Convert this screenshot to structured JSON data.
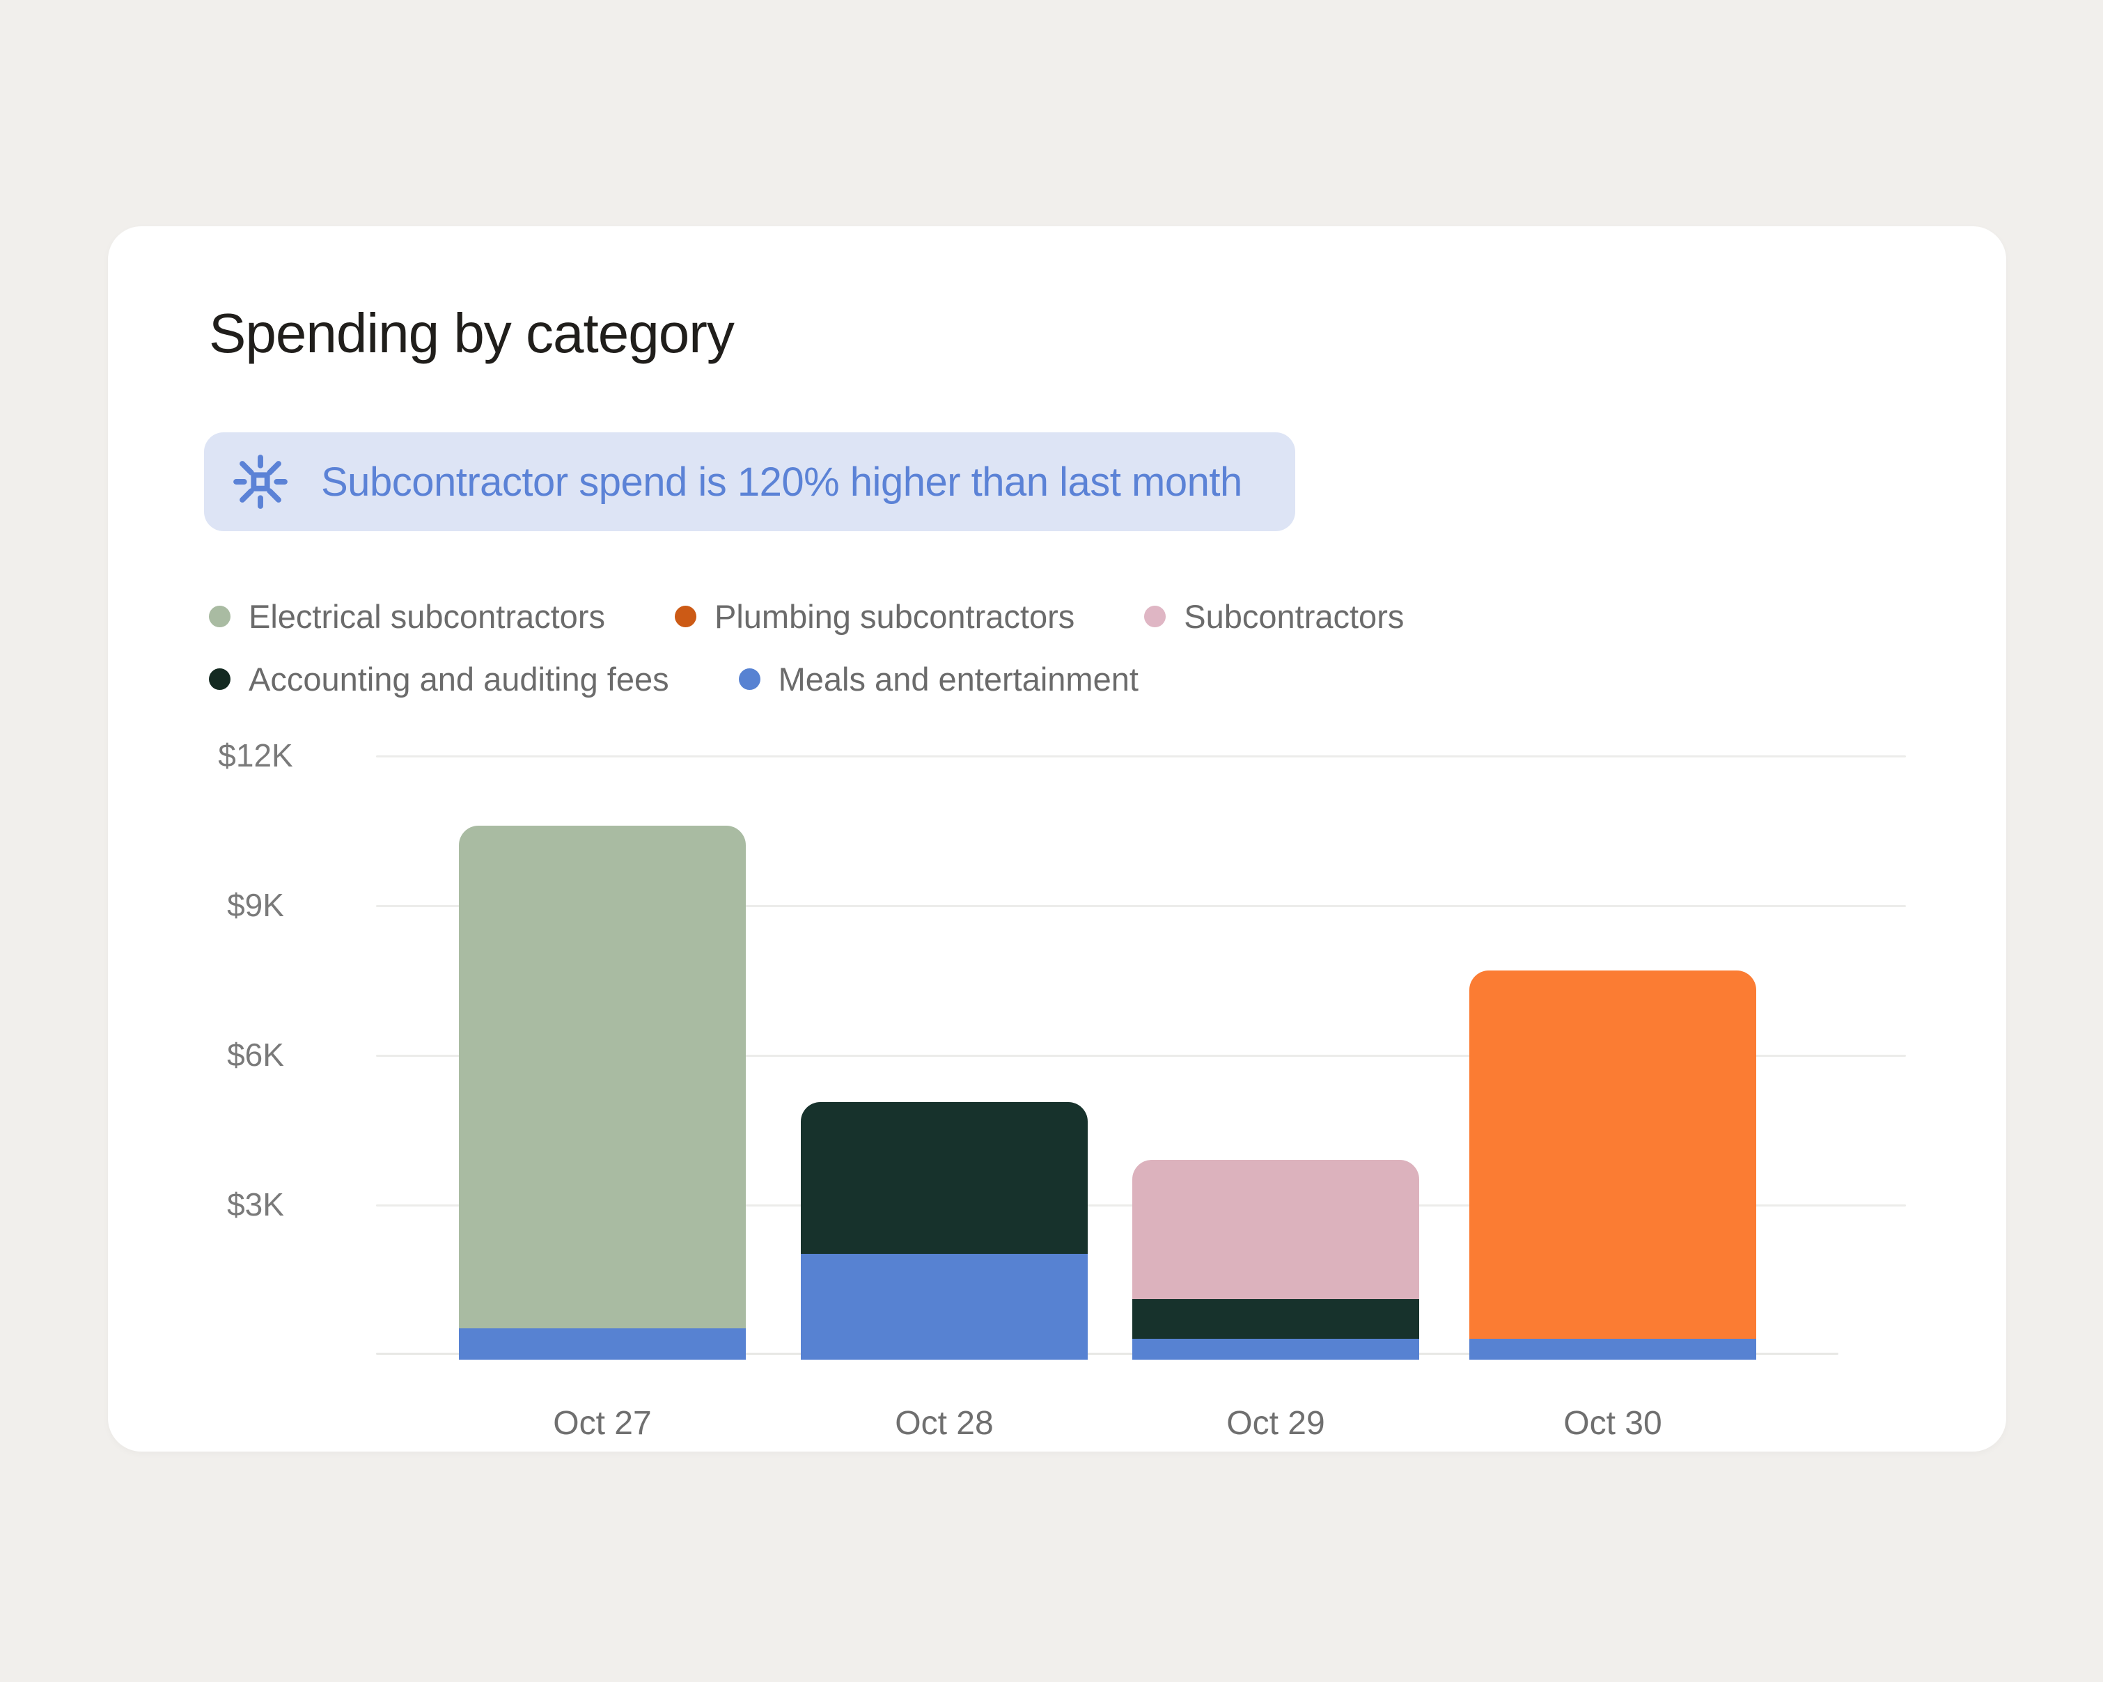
{
  "window": {
    "background": "#f1efec"
  },
  "card": {
    "title": "Spending by category",
    "background": "#ffffff",
    "insight_banner": {
      "icon": "spark-icon",
      "text": "Subcontractor spend is 120% higher than last month",
      "background": "#dde4f5",
      "text_color": "#5b82d6"
    }
  },
  "chart_data": {
    "type": "bar",
    "stacked": true,
    "title": "Spending by category",
    "categories": [
      "Oct 27",
      "Oct 28",
      "Oct 29",
      "Oct 30"
    ],
    "series": [
      {
        "name": "Electrical subcontractors",
        "color": "#a9bba2",
        "legend_dot_color": "#a9bba2",
        "values_k": [
          10.1,
          0,
          0,
          0
        ]
      },
      {
        "name": "Plumbing subcontractors",
        "color": "#fb7c33",
        "legend_dot_color": "#cc5a15",
        "values_k": [
          0,
          0,
          0,
          7.4
        ]
      },
      {
        "name": "Subcontractors",
        "color": "#dcb2bd",
        "legend_dot_color": "#dfb6c4",
        "values_k": [
          0,
          0,
          2.8,
          0
        ]
      },
      {
        "name": "Accounting and auditing fees",
        "color": "#17322c",
        "legend_dot_color": "#142a21",
        "values_k": [
          0,
          3.05,
          0.8,
          0
        ]
      },
      {
        "name": "Meals and entertainment",
        "color": "#5782d2",
        "legend_dot_color": "#5782d2",
        "values_k": [
          0.5,
          2.0,
          0.3,
          0.3
        ]
      }
    ],
    "stack_order_bottom_to_top": [
      "Meals and entertainment",
      "Accounting and auditing fees",
      "Subcontractors",
      "Plumbing subcontractors",
      "Electrical subcontractors"
    ],
    "totals_k": [
      10.6,
      5.05,
      3.9,
      7.7
    ],
    "y_axis": {
      "tick_labels": [
        "$12K",
        "$9K",
        "$6K",
        "$3K"
      ],
      "tick_values_k": [
        12,
        9,
        6,
        3
      ],
      "min_k": 0,
      "max_k": 12,
      "unit": "USD"
    },
    "x_axis": {
      "labels": [
        "Oct 27",
        "Oct 28",
        "Oct 29",
        "Oct 30"
      ]
    },
    "grid": true,
    "legend_position": "top",
    "legend_rows": [
      [
        0,
        1,
        2
      ],
      [
        3,
        4
      ]
    ],
    "colors": {
      "gridline": "#ececea",
      "baseline": "#e8e8e5",
      "y_label": "#7a7a7a",
      "x_label": "#6f6f6f",
      "legend_label": "#6b6b6b"
    }
  }
}
